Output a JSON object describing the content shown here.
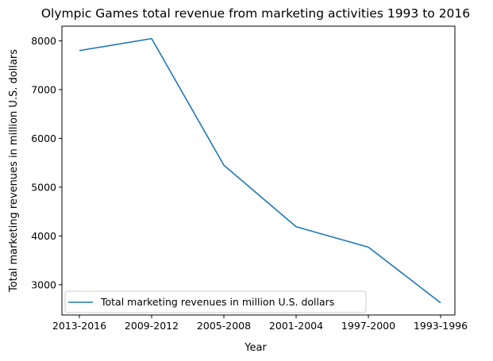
{
  "chart_data": {
    "type": "line",
    "title": "Olympic Games total revenue from marketing activities 1993 to 2016",
    "xlabel": "Year",
    "ylabel": "Total marketing revenues in million U.S. dollars",
    "categories": [
      "2013-2016",
      "2009-2012",
      "2005-2008",
      "2001-2004",
      "1997-2000",
      "1993-1996"
    ],
    "series": [
      {
        "name": "Total marketing revenues in million U.S. dollars",
        "values": [
          7800,
          8046,
          5450,
          4189,
          3770,
          2630
        ],
        "color": "#1f77b4"
      }
    ],
    "ylim": [
      2380,
      8300
    ],
    "yticks": [
      3000,
      4000,
      5000,
      6000,
      7000,
      8000
    ],
    "grid": false,
    "legend_position": "lower-left"
  }
}
